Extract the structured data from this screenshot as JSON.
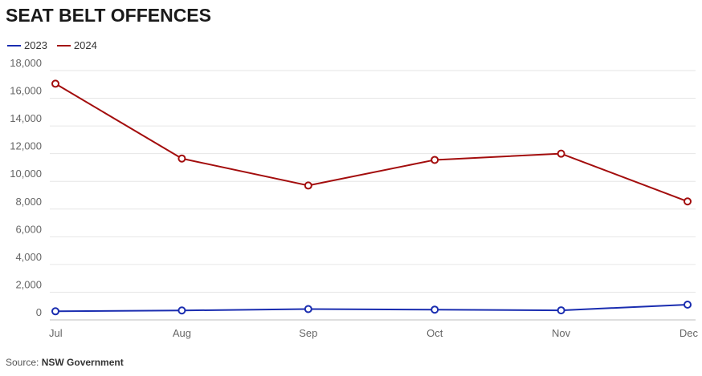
{
  "chart_data": {
    "type": "line",
    "title": "SEAT BELT OFFENCES",
    "categories": [
      "Jul",
      "Aug",
      "Sep",
      "Oct",
      "Nov",
      "Dec"
    ],
    "series": [
      {
        "name": "2023",
        "color": "#1a2db0",
        "values": [
          620,
          680,
          780,
          740,
          690,
          1100
        ]
      },
      {
        "name": "2024",
        "color": "#a30d0d",
        "values": [
          17050,
          11650,
          9700,
          11550,
          12000,
          8550
        ]
      }
    ],
    "ylim": [
      0,
      18000
    ],
    "yticks": [
      0,
      2000,
      4000,
      6000,
      8000,
      10000,
      12000,
      14000,
      16000,
      18000
    ],
    "ytick_labels": [
      "0",
      "2,000",
      "4,000",
      "6,000",
      "8,000",
      "10,000",
      "12,000",
      "14,000",
      "16,000",
      "18,000"
    ],
    "xlabel": "",
    "ylabel": "",
    "grid": true,
    "legend": "top-left"
  },
  "source": {
    "prefix": "Source:",
    "name": "NSW Government"
  }
}
